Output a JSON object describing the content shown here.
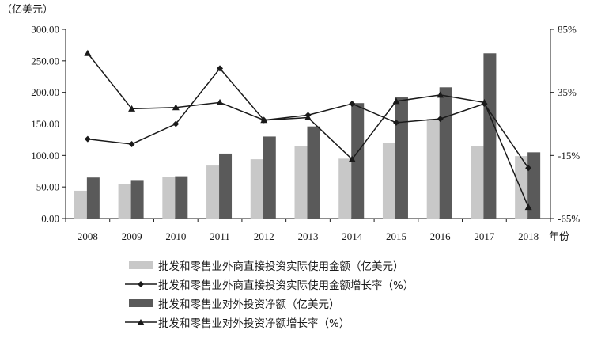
{
  "chart_data": {
    "type": "bar+line",
    "categories": [
      "2008",
      "2009",
      "2010",
      "2011",
      "2012",
      "2013",
      "2014",
      "2015",
      "2016",
      "2017",
      "2018"
    ],
    "x_unit_label": "年份",
    "left_axis": {
      "unit_label": "（亿美元）",
      "ylim": [
        0,
        300
      ],
      "ticks": [
        "0.00",
        "50.00",
        "100.00",
        "150.00",
        "200.00",
        "250.00",
        "300.00"
      ]
    },
    "right_axis": {
      "ylim": [
        -65,
        85
      ],
      "ticks": [
        "-65%",
        "-15%",
        "35%",
        "85%"
      ]
    },
    "series": [
      {
        "name": "批发和零售业外商直接投资实际使用金额（亿美元）",
        "kind": "bar",
        "color": "#c8c8c8",
        "axis": "left",
        "values": [
          44,
          54,
          66,
          84,
          94,
          115,
          95,
          120,
          158,
          115,
          99
        ]
      },
      {
        "name": "批发和零售业外商直接投资实际使用金额增长率（%）",
        "kind": "line",
        "marker": "diamond",
        "color": "#1a1a1a",
        "axis": "right",
        "values": [
          -2,
          -6,
          10,
          54,
          13,
          17,
          26,
          11,
          14,
          26,
          -25
        ]
      },
      {
        "name": "批发和零售业对外投资净额（亿美元）",
        "kind": "bar",
        "color": "#5a5a5a",
        "axis": "left",
        "values": [
          65,
          61,
          67,
          103,
          130,
          146,
          183,
          192,
          208,
          262,
          105
        ]
      },
      {
        "name": "批发和零售业对外投资净额增长率（%）",
        "kind": "line",
        "marker": "triangle",
        "color": "#1a1a1a",
        "axis": "right",
        "values": [
          66,
          22,
          23,
          27,
          13,
          15,
          -18,
          28,
          33,
          27,
          -56
        ]
      }
    ]
  }
}
